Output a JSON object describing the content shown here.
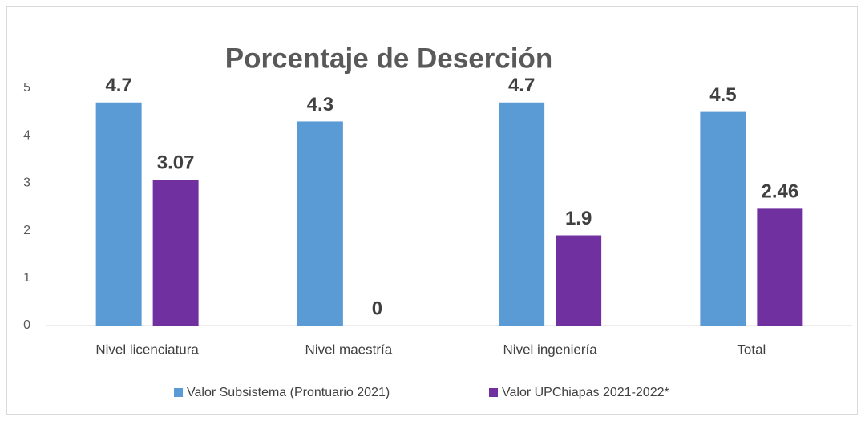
{
  "chart_data": {
    "type": "bar",
    "title": "Porcentaje de Deserción",
    "categories": [
      "Nivel licenciatura",
      "Nivel maestría",
      "Nivel ingeniería",
      "Total"
    ],
    "series": [
      {
        "name": "Valor Subsistema (Prontuario 2021)",
        "color": "#5b9bd5",
        "values": [
          4.7,
          4.3,
          4.7,
          4.5
        ]
      },
      {
        "name": "Valor UPChiapas 2021-2022*",
        "color": "#7030a0",
        "values": [
          3.07,
          0,
          1.9,
          2.46
        ]
      }
    ],
    "ylim": [
      0,
      5
    ],
    "yticks": [
      0,
      1,
      2,
      3,
      4,
      5
    ],
    "grid": false,
    "legend": "bottom"
  }
}
